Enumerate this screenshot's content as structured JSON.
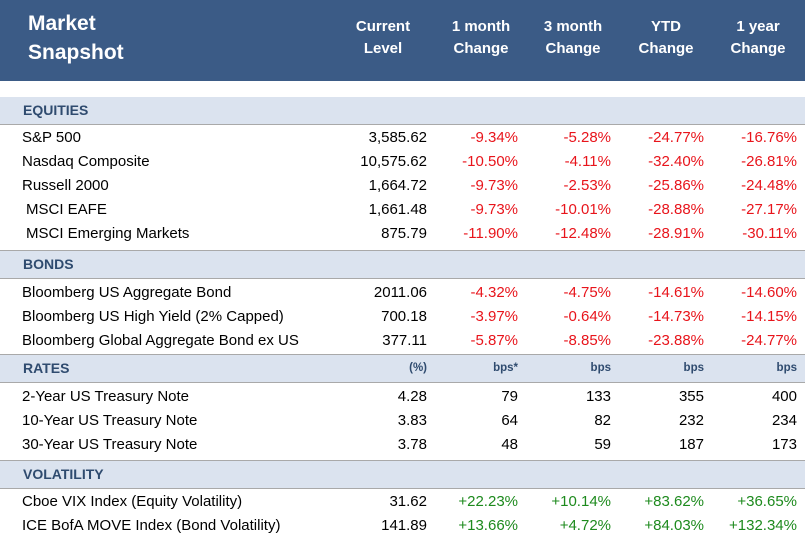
{
  "header": {
    "title_line1": "Market",
    "title_line2": "Snapshot",
    "columns": [
      {
        "line1": "Current",
        "line2": "Level"
      },
      {
        "line1": "1 month",
        "line2": "Change"
      },
      {
        "line1": "3 month",
        "line2": "Change"
      },
      {
        "line1": "YTD",
        "line2": "Change"
      },
      {
        "line1": "1 year",
        "line2": "Change"
      }
    ]
  },
  "colors": {
    "header_bg": "#3b5b86",
    "band_bg": "#dbe3ef",
    "negative": "#e8141b",
    "positive": "#1d8a1d"
  },
  "sections": {
    "equities": {
      "label": "EQUITIES",
      "rows": [
        {
          "name": "S&P 500",
          "level": "3,585.62",
          "m1": "-9.34%",
          "m3": "-5.28%",
          "ytd": "-24.77%",
          "y1": "-16.76%"
        },
        {
          "name": "Nasdaq Composite",
          "level": "10,575.62",
          "m1": "-10.50%",
          "m3": "-4.11%",
          "ytd": "-32.40%",
          "y1": "-26.81%"
        },
        {
          "name": "Russell 2000",
          "level": "1,664.72",
          "m1": "-9.73%",
          "m3": "-2.53%",
          "ytd": "-25.86%",
          "y1": "-24.48%"
        },
        {
          "name": " MSCI EAFE",
          "level": "1,661.48",
          "m1": "-9.73%",
          "m3": "-10.01%",
          "ytd": "-28.88%",
          "y1": "-27.17%"
        },
        {
          "name": " MSCI Emerging Markets",
          "level": "875.79",
          "m1": "-11.90%",
          "m3": "-12.48%",
          "ytd": "-28.91%",
          "y1": "-30.11%"
        }
      ]
    },
    "bonds": {
      "label": "BONDS",
      "rows": [
        {
          "name": "Bloomberg US Aggregate Bond",
          "level": "2011.06",
          "m1": "-4.32%",
          "m3": "-4.75%",
          "ytd": "-14.61%",
          "y1": "-14.60%"
        },
        {
          "name": "Bloomberg US High Yield (2% Capped)",
          "level": "700.18",
          "m1": "-3.97%",
          "m3": "-0.64%",
          "ytd": "-14.73%",
          "y1": "-14.15%"
        },
        {
          "name": "Bloomberg Global Aggregate Bond ex US",
          "level": "377.11",
          "m1": "-5.87%",
          "m3": "-8.85%",
          "ytd": "-23.88%",
          "y1": "-24.77%"
        }
      ]
    },
    "rates": {
      "label": "RATES",
      "units": [
        "(%)",
        "bps*",
        "bps",
        "bps",
        "bps"
      ],
      "rows": [
        {
          "name": "2-Year US Treasury Note",
          "level": "4.28",
          "m1": "79",
          "m3": "133",
          "ytd": "355",
          "y1": "400"
        },
        {
          "name": "10-Year US Treasury Note",
          "level": "3.83",
          "m1": "64",
          "m3": "82",
          "ytd": "232",
          "y1": "234"
        },
        {
          "name": "30-Year US Treasury Note",
          "level": "3.78",
          "m1": "48",
          "m3": "59",
          "ytd": "187",
          "y1": "173"
        }
      ]
    },
    "volatility": {
      "label": "VOLATILITY",
      "rows": [
        {
          "name": "Cboe VIX Index (Equity Volatility)",
          "level": "31.62",
          "m1": "+22.23%",
          "m3": "+10.14%",
          "ytd": "+83.62%",
          "y1": "+36.65%"
        },
        {
          "name": "ICE BofA MOVE Index (Bond Volatility)",
          "level": "141.89",
          "m1": "+13.66%",
          "m3": "+4.72%",
          "ytd": "+84.03%",
          "y1": "+132.34%"
        }
      ]
    }
  }
}
